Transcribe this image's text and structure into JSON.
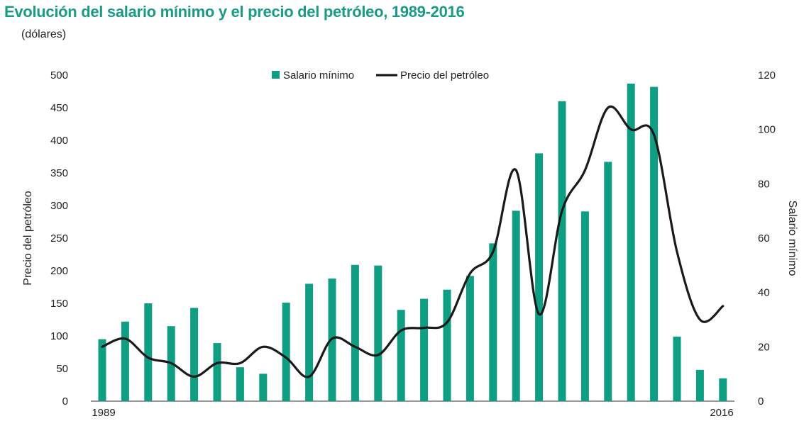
{
  "title": "Evolución del salario mínimo y el precio del petróleo, 1989-2016",
  "subtitle": "(dólares)",
  "colors": {
    "bar": "#0f9e82",
    "line": "#1a1a1a",
    "title": "#1a9b86"
  },
  "chart_data": {
    "type": "bar+line",
    "title": "Evolución del salario mínimo y el precio del petróleo, 1989-2016",
    "subtitle": "(dólares)",
    "x_start_label": "1989",
    "x_end_label": "2016",
    "left_axis": {
      "label": "Precio del petróleo",
      "range": [
        0,
        500
      ],
      "ticks": [
        0,
        50,
        100,
        150,
        200,
        250,
        300,
        350,
        400,
        450,
        500
      ]
    },
    "right_axis": {
      "label": "Salario mínimo",
      "range": [
        0,
        120
      ],
      "ticks": [
        0,
        20,
        40,
        60,
        80,
        100,
        120
      ]
    },
    "legend": {
      "position": "top-center",
      "bar_label": "Salario mínimo",
      "line_label": "Precio del petróleo"
    },
    "years": [
      1989,
      1990,
      1991,
      1992,
      1993,
      1994,
      1995,
      1996,
      1997,
      1998,
      1999,
      2000,
      2001,
      2002,
      2003,
      2004,
      2005,
      2006,
      2007,
      2008,
      2009,
      2010,
      2011,
      2012,
      2013,
      2014,
      2015,
      2016
    ],
    "bar_series": {
      "name": "Salario mínimo",
      "axis": "left",
      "values": [
        95,
        122,
        150,
        115,
        143,
        89,
        52,
        42,
        151,
        180,
        188,
        209,
        208,
        140,
        157,
        171,
        192,
        242,
        292,
        380,
        460,
        291,
        367,
        487,
        482,
        99,
        48,
        35
      ]
    },
    "line_series": {
      "name": "Precio del petróleo",
      "axis": "right",
      "values": [
        20,
        23,
        16,
        14,
        9,
        14,
        14,
        20,
        16,
        9,
        23,
        20,
        17,
        26,
        27,
        29,
        47,
        55,
        85,
        32,
        70,
        85,
        108,
        100,
        98,
        55,
        30,
        35
      ]
    }
  }
}
